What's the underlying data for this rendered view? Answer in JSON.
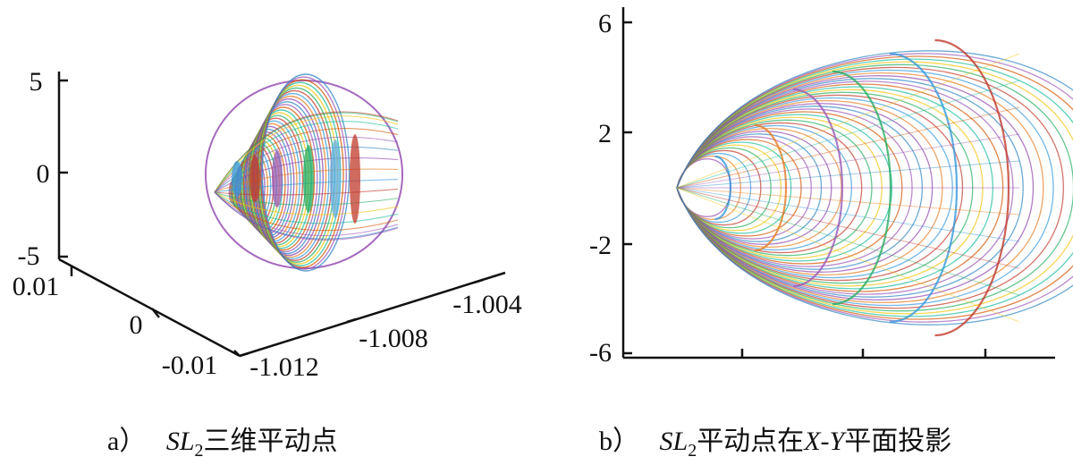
{
  "chart_data": [
    {
      "type": "scatter",
      "projection": "3d",
      "description_shown": "closed orbit family around SL2 point",
      "x_axis": {
        "ticks": [
          "-1.012",
          "-1.008",
          "-1.004"
        ],
        "range": [
          -1.012,
          -1.003
        ]
      },
      "y_axis": {
        "ticks": [
          "0.01",
          "0",
          "-0.01"
        ],
        "range": [
          -0.01,
          0.01
        ]
      },
      "z_axis": {
        "ticks": [
          "5",
          "0",
          "-5"
        ],
        "range": [
          -5,
          5
        ]
      },
      "grid": false,
      "orbit_count": 40,
      "caption": {
        "prefix": "a）",
        "sym": "SL",
        "sub": "2",
        "text": "三维平动点"
      }
    },
    {
      "type": "line",
      "projection": "xy",
      "y_axis": {
        "ticks": [
          "6",
          "2",
          "-2",
          "-6"
        ],
        "range": [
          -6,
          6
        ]
      },
      "x_axis": {
        "ticks": [
          "",
          "",
          ""
        ]
      },
      "grid": false,
      "orbit_count": 40,
      "caption": {
        "prefix": "b）",
        "sym": "SL",
        "sub": "2",
        "text1": "平动点在",
        "sym2": "X",
        "dash": "-",
        "sym3": "Y",
        "text2": "平面投影"
      }
    }
  ],
  "colors": {
    "palette": [
      "#8e44ad",
      "#e67e22",
      "#3498db",
      "#c0392b",
      "#27ae60",
      "#f1c40f",
      "#1abc9c",
      "#d35400",
      "#9b59b6",
      "#2e86c1"
    ]
  }
}
